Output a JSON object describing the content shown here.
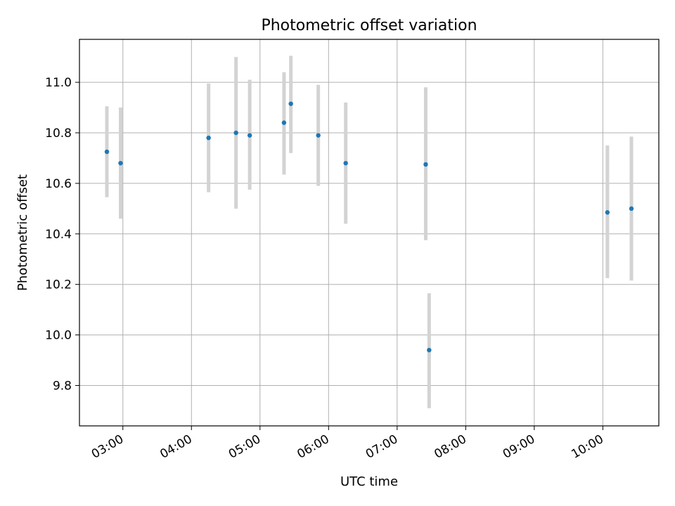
{
  "chart_data": {
    "type": "scatter",
    "title": "Photometric offset variation",
    "xlabel": "UTC time",
    "ylabel": "Photometric offset",
    "xlim": [
      "02:22",
      "10:49"
    ],
    "ylim": [
      9.64,
      11.17
    ],
    "grid": true,
    "x_ticks": [
      "03:00",
      "04:00",
      "05:00",
      "06:00",
      "07:00",
      "08:00",
      "09:00",
      "10:00"
    ],
    "y_ticks": [
      "9.8",
      "10.0",
      "10.2",
      "10.4",
      "10.6",
      "10.8",
      "11.0"
    ],
    "colors": {
      "points": "#1f77b4",
      "error_bars": "#d3d3d3",
      "grid": "#b0b0b0"
    },
    "series": [
      {
        "points": [
          {
            "x": "02:46",
            "y": 10.725,
            "yerr_low": 10.545,
            "yerr_high": 10.905
          },
          {
            "x": "02:58",
            "y": 10.68,
            "yerr_low": 10.46,
            "yerr_high": 10.9
          },
          {
            "x": "04:15",
            "y": 10.78,
            "yerr_low": 10.565,
            "yerr_high": 10.995
          },
          {
            "x": "04:39",
            "y": 10.8,
            "yerr_low": 10.5,
            "yerr_high": 11.1
          },
          {
            "x": "04:51",
            "y": 10.79,
            "yerr_low": 10.575,
            "yerr_high": 11.01
          },
          {
            "x": "05:21",
            "y": 10.84,
            "yerr_low": 10.635,
            "yerr_high": 11.04
          },
          {
            "x": "05:27",
            "y": 10.915,
            "yerr_low": 10.72,
            "yerr_high": 11.105
          },
          {
            "x": "05:51",
            "y": 10.79,
            "yerr_low": 10.59,
            "yerr_high": 10.99
          },
          {
            "x": "06:15",
            "y": 10.68,
            "yerr_low": 10.44,
            "yerr_high": 10.92
          },
          {
            "x": "07:25",
            "y": 10.675,
            "yerr_low": 10.375,
            "yerr_high": 10.98
          },
          {
            "x": "07:28",
            "y": 9.94,
            "yerr_low": 9.71,
            "yerr_high": 10.165
          },
          {
            "x": "10:04",
            "y": 10.485,
            "yerr_low": 10.225,
            "yerr_high": 10.75
          },
          {
            "x": "10:25",
            "y": 10.5,
            "yerr_low": 10.215,
            "yerr_high": 10.785
          }
        ]
      }
    ]
  }
}
